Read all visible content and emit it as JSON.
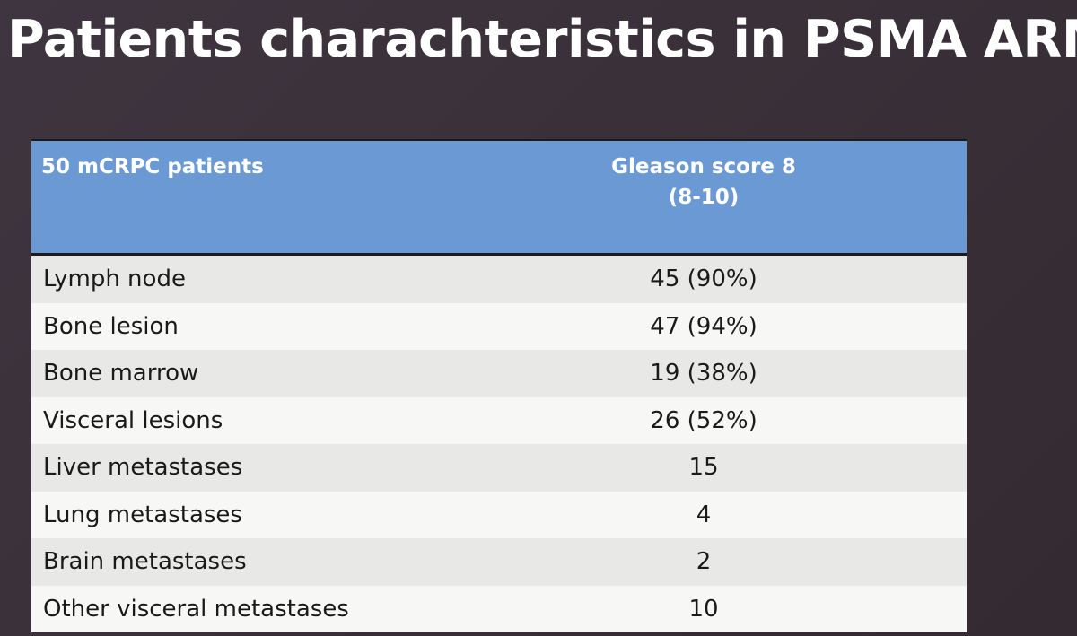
{
  "slide": {
    "title": "Patients charachteristics in PSMA ARM"
  },
  "table": {
    "header": {
      "col1": "50 mCRPC patients",
      "col2_line1": "Gleason score 8",
      "col2_line2": "(8-10)"
    },
    "rows": [
      {
        "label": "Lymph node",
        "value": "45 (90%)"
      },
      {
        "label": "Bone lesion",
        "value": "47 (94%)"
      },
      {
        "label": "Bone marrow",
        "value": "19 (38%)"
      },
      {
        "label": "Visceral lesions",
        "value": "26 (52%)"
      },
      {
        "label": "Liver metastases",
        "value": "15"
      },
      {
        "label": "Lung metastases",
        "value": "4"
      },
      {
        "label": "Brain metastases",
        "value": "2"
      },
      {
        "label": "Other visceral metastases",
        "value": "10"
      }
    ]
  },
  "colors": {
    "background": "#3a3039",
    "header_fill": "#6a99d4",
    "row_odd": "#e8e8e7",
    "row_even": "#f7f7f5",
    "title_text": "#ffffff"
  }
}
